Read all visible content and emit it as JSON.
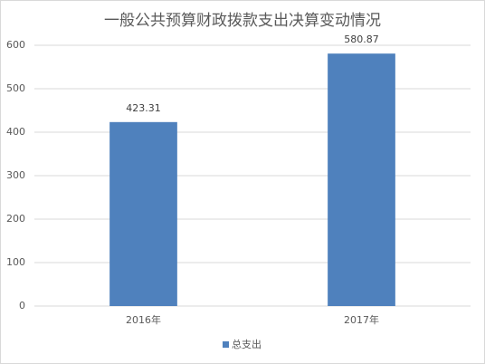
{
  "chart_data": {
    "type": "bar",
    "title": "一般公共预算财政拨款支出决算变动情况",
    "categories": [
      "2016年",
      "2017年"
    ],
    "series": [
      {
        "name": "总支出",
        "color": "#4f81bd",
        "values": [
          423.31,
          580.87
        ]
      }
    ],
    "ylim": [
      0,
      600
    ],
    "yticks": [
      0,
      100,
      200,
      300,
      400,
      500,
      600
    ],
    "grid": true,
    "legend": "bottom"
  }
}
